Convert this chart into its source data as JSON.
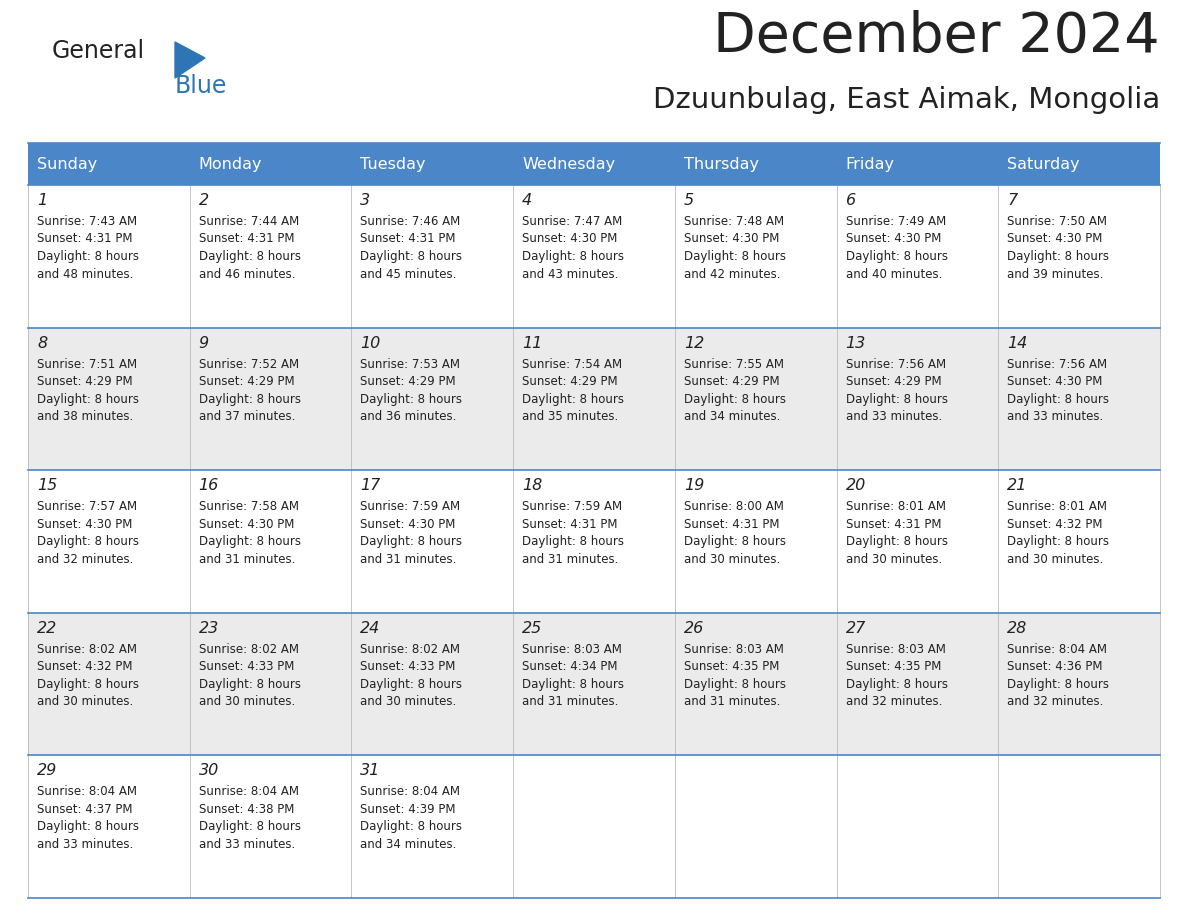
{
  "title": "December 2024",
  "subtitle": "Dzuunbulag, East Aimak, Mongolia",
  "header_color": "#4a86c8",
  "header_text_color": "#FFFFFF",
  "cell_bg_white": "#FFFFFF",
  "cell_bg_gray": "#EBEBEB",
  "border_color": "#4a86c8",
  "text_color": "#222222",
  "logo_general_color": "#222222",
  "logo_blue_color": "#2E75B6",
  "day_headers": [
    "Sunday",
    "Monday",
    "Tuesday",
    "Wednesday",
    "Thursday",
    "Friday",
    "Saturday"
  ],
  "days": [
    {
      "day": "1",
      "col": 0,
      "row": 0,
      "sunrise": "7:43 AM",
      "sunset": "4:31 PM",
      "dl1": "Daylight: 8 hours",
      "dl2": "and 48 minutes."
    },
    {
      "day": "2",
      "col": 1,
      "row": 0,
      "sunrise": "7:44 AM",
      "sunset": "4:31 PM",
      "dl1": "Daylight: 8 hours",
      "dl2": "and 46 minutes."
    },
    {
      "day": "3",
      "col": 2,
      "row": 0,
      "sunrise": "7:46 AM",
      "sunset": "4:31 PM",
      "dl1": "Daylight: 8 hours",
      "dl2": "and 45 minutes."
    },
    {
      "day": "4",
      "col": 3,
      "row": 0,
      "sunrise": "7:47 AM",
      "sunset": "4:30 PM",
      "dl1": "Daylight: 8 hours",
      "dl2": "and 43 minutes."
    },
    {
      "day": "5",
      "col": 4,
      "row": 0,
      "sunrise": "7:48 AM",
      "sunset": "4:30 PM",
      "dl1": "Daylight: 8 hours",
      "dl2": "and 42 minutes."
    },
    {
      "day": "6",
      "col": 5,
      "row": 0,
      "sunrise": "7:49 AM",
      "sunset": "4:30 PM",
      "dl1": "Daylight: 8 hours",
      "dl2": "and 40 minutes."
    },
    {
      "day": "7",
      "col": 6,
      "row": 0,
      "sunrise": "7:50 AM",
      "sunset": "4:30 PM",
      "dl1": "Daylight: 8 hours",
      "dl2": "and 39 minutes."
    },
    {
      "day": "8",
      "col": 0,
      "row": 1,
      "sunrise": "7:51 AM",
      "sunset": "4:29 PM",
      "dl1": "Daylight: 8 hours",
      "dl2": "and 38 minutes."
    },
    {
      "day": "9",
      "col": 1,
      "row": 1,
      "sunrise": "7:52 AM",
      "sunset": "4:29 PM",
      "dl1": "Daylight: 8 hours",
      "dl2": "and 37 minutes."
    },
    {
      "day": "10",
      "col": 2,
      "row": 1,
      "sunrise": "7:53 AM",
      "sunset": "4:29 PM",
      "dl1": "Daylight: 8 hours",
      "dl2": "and 36 minutes."
    },
    {
      "day": "11",
      "col": 3,
      "row": 1,
      "sunrise": "7:54 AM",
      "sunset": "4:29 PM",
      "dl1": "Daylight: 8 hours",
      "dl2": "and 35 minutes."
    },
    {
      "day": "12",
      "col": 4,
      "row": 1,
      "sunrise": "7:55 AM",
      "sunset": "4:29 PM",
      "dl1": "Daylight: 8 hours",
      "dl2": "and 34 minutes."
    },
    {
      "day": "13",
      "col": 5,
      "row": 1,
      "sunrise": "7:56 AM",
      "sunset": "4:29 PM",
      "dl1": "Daylight: 8 hours",
      "dl2": "and 33 minutes."
    },
    {
      "day": "14",
      "col": 6,
      "row": 1,
      "sunrise": "7:56 AM",
      "sunset": "4:30 PM",
      "dl1": "Daylight: 8 hours",
      "dl2": "and 33 minutes."
    },
    {
      "day": "15",
      "col": 0,
      "row": 2,
      "sunrise": "7:57 AM",
      "sunset": "4:30 PM",
      "dl1": "Daylight: 8 hours",
      "dl2": "and 32 minutes."
    },
    {
      "day": "16",
      "col": 1,
      "row": 2,
      "sunrise": "7:58 AM",
      "sunset": "4:30 PM",
      "dl1": "Daylight: 8 hours",
      "dl2": "and 31 minutes."
    },
    {
      "day": "17",
      "col": 2,
      "row": 2,
      "sunrise": "7:59 AM",
      "sunset": "4:30 PM",
      "dl1": "Daylight: 8 hours",
      "dl2": "and 31 minutes."
    },
    {
      "day": "18",
      "col": 3,
      "row": 2,
      "sunrise": "7:59 AM",
      "sunset": "4:31 PM",
      "dl1": "Daylight: 8 hours",
      "dl2": "and 31 minutes."
    },
    {
      "day": "19",
      "col": 4,
      "row": 2,
      "sunrise": "8:00 AM",
      "sunset": "4:31 PM",
      "dl1": "Daylight: 8 hours",
      "dl2": "and 30 minutes."
    },
    {
      "day": "20",
      "col": 5,
      "row": 2,
      "sunrise": "8:01 AM",
      "sunset": "4:31 PM",
      "dl1": "Daylight: 8 hours",
      "dl2": "and 30 minutes."
    },
    {
      "day": "21",
      "col": 6,
      "row": 2,
      "sunrise": "8:01 AM",
      "sunset": "4:32 PM",
      "dl1": "Daylight: 8 hours",
      "dl2": "and 30 minutes."
    },
    {
      "day": "22",
      "col": 0,
      "row": 3,
      "sunrise": "8:02 AM",
      "sunset": "4:32 PM",
      "dl1": "Daylight: 8 hours",
      "dl2": "and 30 minutes."
    },
    {
      "day": "23",
      "col": 1,
      "row": 3,
      "sunrise": "8:02 AM",
      "sunset": "4:33 PM",
      "dl1": "Daylight: 8 hours",
      "dl2": "and 30 minutes."
    },
    {
      "day": "24",
      "col": 2,
      "row": 3,
      "sunrise": "8:02 AM",
      "sunset": "4:33 PM",
      "dl1": "Daylight: 8 hours",
      "dl2": "and 30 minutes."
    },
    {
      "day": "25",
      "col": 3,
      "row": 3,
      "sunrise": "8:03 AM",
      "sunset": "4:34 PM",
      "dl1": "Daylight: 8 hours",
      "dl2": "and 31 minutes."
    },
    {
      "day": "26",
      "col": 4,
      "row": 3,
      "sunrise": "8:03 AM",
      "sunset": "4:35 PM",
      "dl1": "Daylight: 8 hours",
      "dl2": "and 31 minutes."
    },
    {
      "day": "27",
      "col": 5,
      "row": 3,
      "sunrise": "8:03 AM",
      "sunset": "4:35 PM",
      "dl1": "Daylight: 8 hours",
      "dl2": "and 32 minutes."
    },
    {
      "day": "28",
      "col": 6,
      "row": 3,
      "sunrise": "8:04 AM",
      "sunset": "4:36 PM",
      "dl1": "Daylight: 8 hours",
      "dl2": "and 32 minutes."
    },
    {
      "day": "29",
      "col": 0,
      "row": 4,
      "sunrise": "8:04 AM",
      "sunset": "4:37 PM",
      "dl1": "Daylight: 8 hours",
      "dl2": "and 33 minutes."
    },
    {
      "day": "30",
      "col": 1,
      "row": 4,
      "sunrise": "8:04 AM",
      "sunset": "4:38 PM",
      "dl1": "Daylight: 8 hours",
      "dl2": "and 33 minutes."
    },
    {
      "day": "31",
      "col": 2,
      "row": 4,
      "sunrise": "8:04 AM",
      "sunset": "4:39 PM",
      "dl1": "Daylight: 8 hours",
      "dl2": "and 34 minutes."
    }
  ],
  "num_rows": 5,
  "num_cols": 7,
  "fig_width": 11.88,
  "fig_height": 9.18,
  "dpi": 100
}
